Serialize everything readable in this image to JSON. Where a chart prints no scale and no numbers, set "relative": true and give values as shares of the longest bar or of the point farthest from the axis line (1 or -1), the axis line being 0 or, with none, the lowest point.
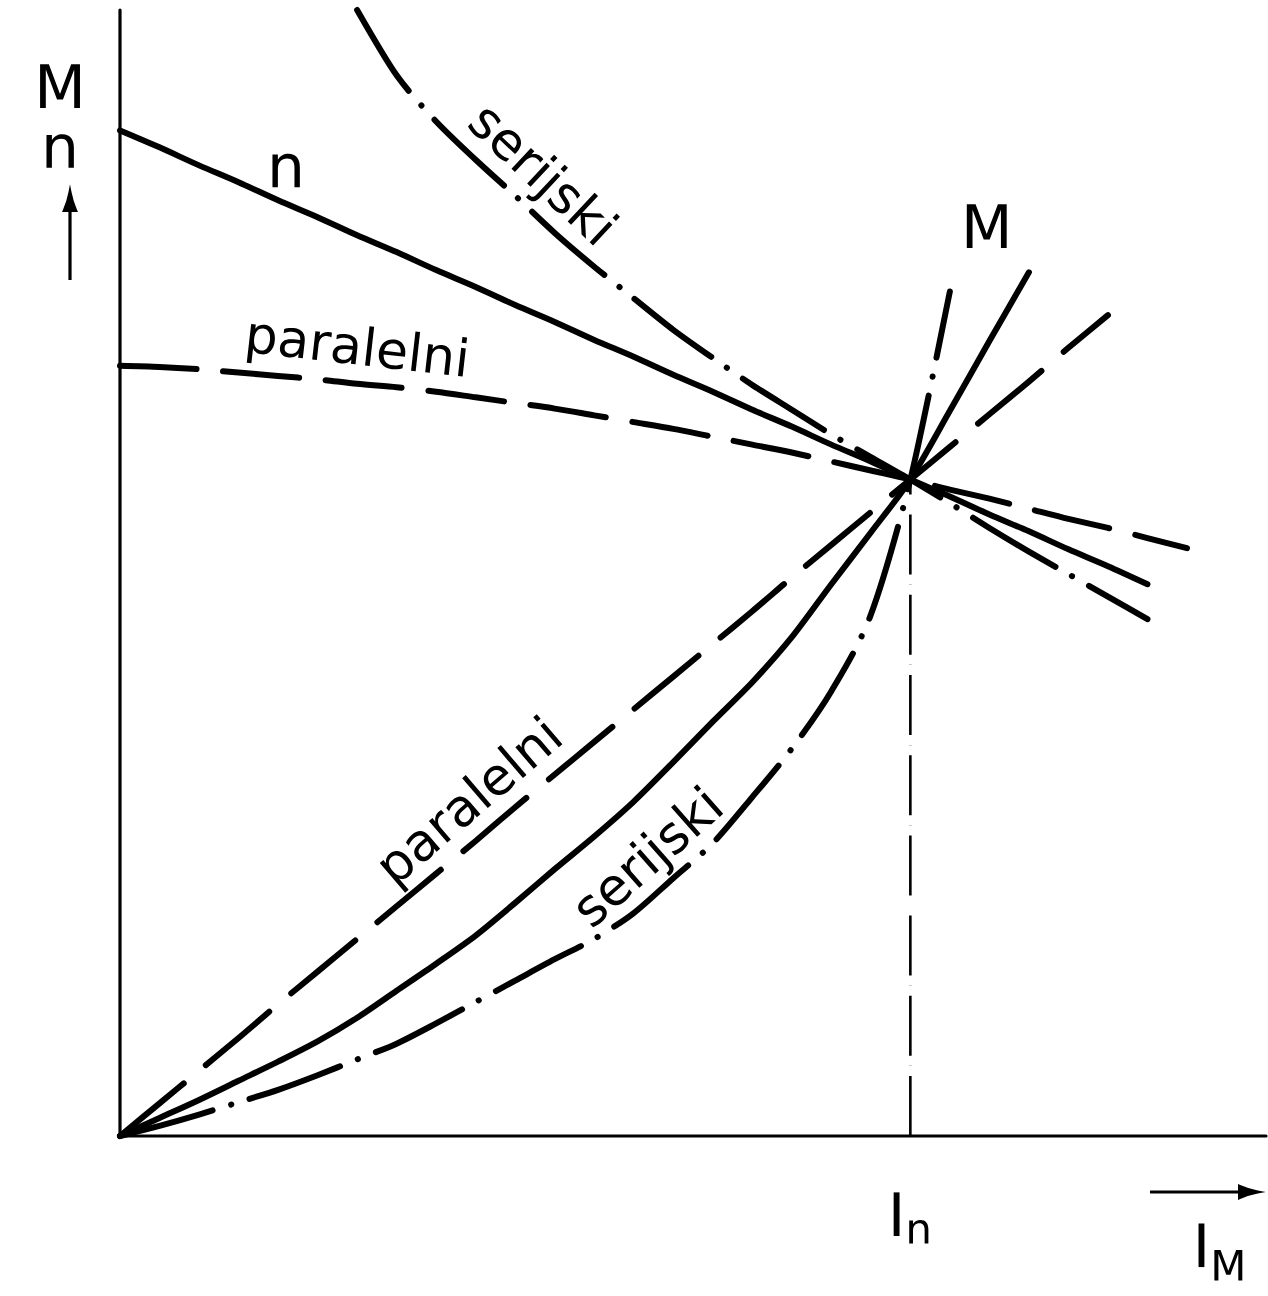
{
  "chart_data": {
    "type": "line",
    "relative": true,
    "xlabel": "I$_{M}$",
    "ylabel": "M n",
    "categories": [
      null,
      null,
      null,
      null,
      null,
      null,
      null,
      null,
      null,
      null,
      null,
      null,
      null,
      null,
      null,
      null,
      null,
      null,
      null,
      null,
      null,
      null,
      null,
      null,
      null,
      null,
      null,
      null,
      null,
      null
    ],
    "series": [
      {
        "name": "n",
        "color": "#000000",
        "line_style": "solid",
        "values": [
          0.893,
          0.878,
          0.862,
          0.847,
          0.831,
          0.816,
          0.8,
          0.785,
          0.769,
          0.754,
          0.738,
          0.723,
          0.707,
          0.692,
          0.676,
          0.661,
          0.645,
          0.63,
          0.614,
          0.599,
          0.583,
          0.568,
          0.552,
          0.537,
          0.521,
          0.506,
          0.49,
          null,
          null,
          null
        ]
      },
      {
        "name": "paralelni",
        "color": "#000000",
        "line_style": "dashed",
        "values": [
          0.684,
          0.683,
          0.681,
          0.678,
          0.675,
          0.672,
          0.668,
          0.665,
          0.661,
          0.656,
          0.651,
          0.646,
          0.64,
          0.634,
          0.628,
          0.621,
          0.614,
          0.607,
          0.599,
          0.591,
          0.583,
          0.574,
          0.566,
          0.557,
          0.548,
          0.54,
          0.531,
          0.522,
          null,
          null
        ]
      },
      {
        "name": "serijski",
        "color": "#000000",
        "line_style": "dashdot",
        "values": [
          null,
          null,
          null,
          null,
          null,
          null,
          1,
          0.942,
          0.901,
          0.867,
          0.835,
          0.802,
          0.772,
          0.744,
          0.716,
          0.691,
          0.667,
          0.645,
          0.623,
          0.603,
          0.583,
          0.562,
          0.54,
          0.519,
          0.499,
          0.479,
          0.459,
          null,
          null,
          null
        ]
      },
      {
        "name": "M",
        "color": "#000000",
        "line_style": "solid",
        "values": [
          0,
          0.016,
          0.032,
          0.049,
          0.066,
          0.084,
          0.105,
          0.129,
          0.153,
          0.178,
          0.207,
          0.237,
          0.266,
          0.297,
          0.332,
          0.368,
          0.403,
          0.443,
          0.49,
          0.536,
          0.583,
          0.644,
          0.706,
          0.767,
          null,
          null,
          null,
          null,
          null,
          null
        ]
      },
      {
        "name": "paralelni",
        "color": "#000000",
        "line_style": "dashed",
        "values": [
          0,
          0.029,
          0.058,
          0.087,
          0.117,
          0.146,
          0.175,
          0.204,
          0.233,
          0.262,
          0.292,
          0.321,
          0.35,
          0.379,
          0.408,
          0.437,
          0.466,
          0.496,
          0.525,
          0.554,
          0.583,
          0.612,
          0.641,
          0.67,
          0.7,
          0.729,
          null,
          null,
          null,
          null
        ]
      },
      {
        "name": "serijski",
        "color": "#000000",
        "line_style": "dashdot",
        "values": [
          0,
          0.009,
          0.019,
          0.03,
          0.041,
          0.054,
          0.068,
          0.082,
          0.1,
          0.119,
          0.138,
          0.157,
          0.175,
          0.198,
          0.229,
          0.26,
          0.301,
          0.344,
          0.395,
          0.463,
          0.583,
          0.75,
          null,
          null,
          null,
          null,
          null,
          null,
          null,
          null
        ]
      }
    ],
    "annotations": [
      "I$_{n}$"
    ]
  }
}
